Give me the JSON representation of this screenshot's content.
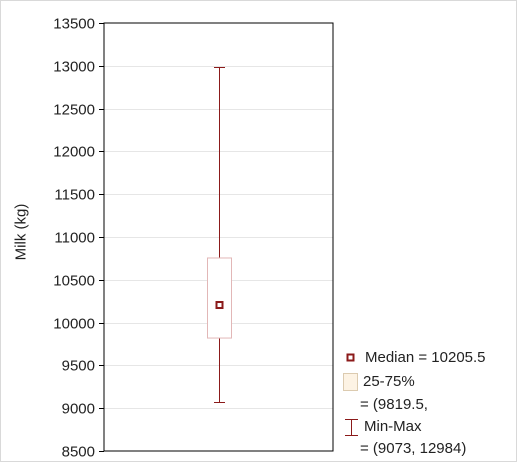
{
  "chart_data": {
    "type": "box",
    "title": "",
    "xlabel": "",
    "ylabel": "Milk (kg)",
    "ylim": [
      8500,
      13500
    ],
    "yticks": [
      8500,
      9000,
      9500,
      10000,
      10500,
      11000,
      11500,
      12000,
      12500,
      13000,
      13500
    ],
    "grid": true,
    "series": [
      {
        "min": 9073,
        "q1": 9819.5,
        "median": 10205.5,
        "q3": 10755,
        "max": 12984
      }
    ],
    "colors": {
      "whisker": "#8b1a1a",
      "box_border": "#e2b7b7",
      "box_fill": "#ffffff",
      "median_marker": "#8b1a1a",
      "grid": "#e6e6e6",
      "axis": "#000000"
    },
    "legend": {
      "placement": "bottom-right",
      "median_label": "Median = 10205.5",
      "iqr_label_1": "25-75%",
      "iqr_label_2": "= (9819.5,",
      "range_label_1": "Min-Max",
      "range_label_2": "= (9073, 12984)"
    }
  }
}
